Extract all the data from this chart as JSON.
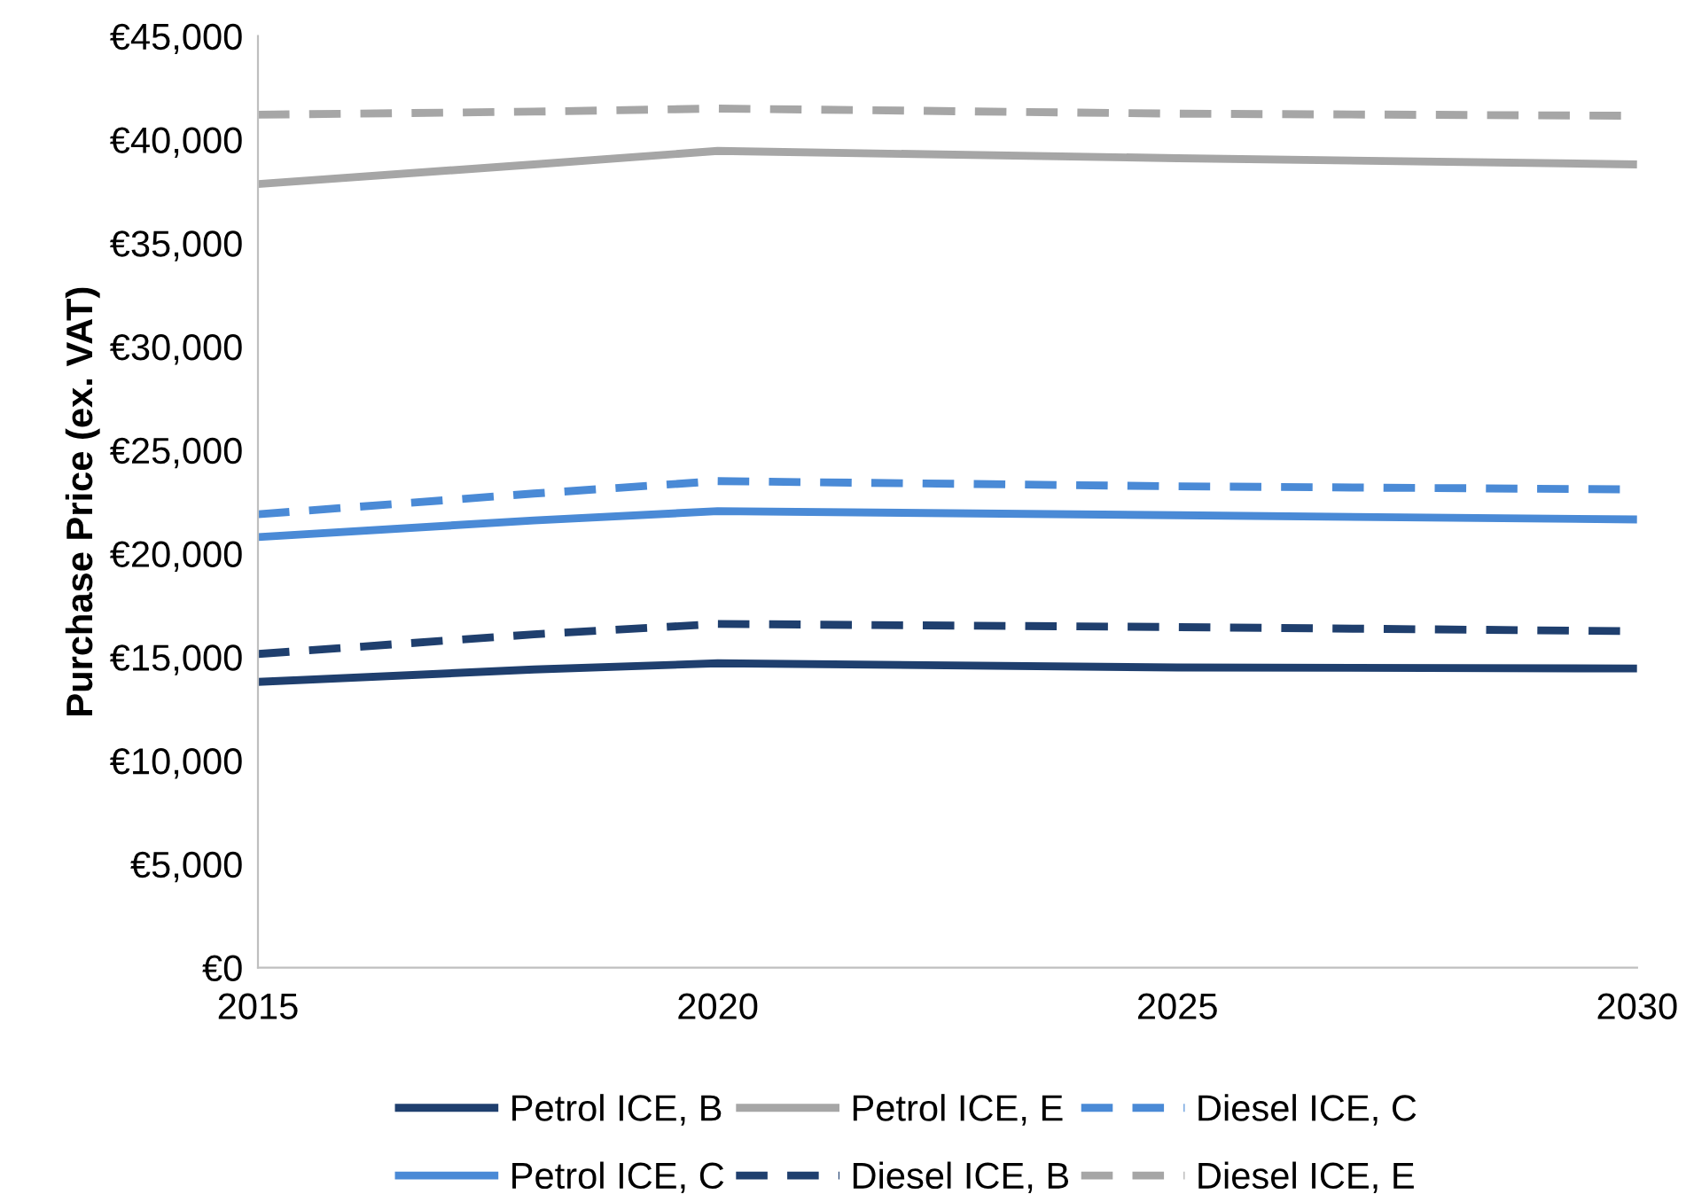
{
  "chart_data": {
    "type": "line",
    "ylabel": "Purchase Price (ex. VAT)",
    "x": [
      2015,
      2018,
      2020,
      2025,
      2030
    ],
    "series": [
      {
        "name": "Petrol ICE, B",
        "color": "#1f3f6e",
        "line_style": "solid",
        "values": [
          13800,
          14400,
          14700,
          14500,
          14450
        ]
      },
      {
        "name": "Petrol ICE, C",
        "color": "#4a8ad6",
        "line_style": "solid",
        "values": [
          20800,
          21600,
          22050,
          21850,
          21650
        ]
      },
      {
        "name": "Petrol ICE, E",
        "color": "#a6a6a6",
        "line_style": "solid",
        "values": [
          37850,
          38800,
          39450,
          39100,
          38800
        ]
      },
      {
        "name": "Diesel ICE, B",
        "color": "#1f3f6e",
        "line_style": "dashed",
        "values": [
          15150,
          16100,
          16600,
          16450,
          16250
        ]
      },
      {
        "name": "Diesel ICE, C",
        "color": "#4a8ad6",
        "line_style": "dashed",
        "values": [
          21900,
          22900,
          23500,
          23250,
          23100
        ]
      },
      {
        "name": "Diesel ICE, E",
        "color": "#a6a6a6",
        "line_style": "dashed",
        "values": [
          41200,
          41350,
          41500,
          41250,
          41150
        ]
      }
    ],
    "xlim": [
      2015,
      2030
    ],
    "xticks": [
      2015,
      2020,
      2025,
      2030
    ],
    "ylim": [
      0,
      45000
    ],
    "yticks": [
      {
        "value": 0,
        "label": "€0"
      },
      {
        "value": 5000,
        "label": "€5,000"
      },
      {
        "value": 10000,
        "label": "€10,000"
      },
      {
        "value": 15000,
        "label": "€15,000"
      },
      {
        "value": 20000,
        "label": "€20,000"
      },
      {
        "value": 25000,
        "label": "€25,000"
      },
      {
        "value": 30000,
        "label": "€30,000"
      },
      {
        "value": 35000,
        "label": "€35,000"
      },
      {
        "value": 40000,
        "label": "€40,000"
      },
      {
        "value": 45000,
        "label": "€45,000"
      }
    ],
    "grid": false,
    "legend": "bottom",
    "marker": "none"
  }
}
